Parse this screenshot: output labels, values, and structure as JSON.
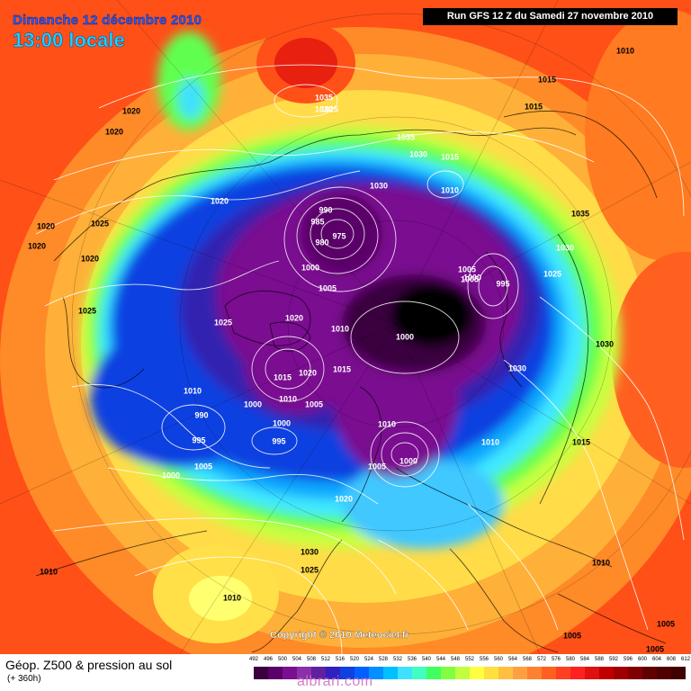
{
  "header": {
    "date_line": "Dimanche 12 décembre 2010",
    "time_line": "13:00 locale",
    "run_info": "Run GFS 12 Z du Samedi 27 novembre 2010"
  },
  "footer": {
    "title": "Géop. Z500 & pression au sol",
    "subtitle": "(+ 360h)",
    "copyright": "Copyright © 2010 Meteociel.fr",
    "watermark": "albrari.com"
  },
  "scale": {
    "labels": [
      "492",
      "496",
      "500",
      "504",
      "508",
      "512",
      "516",
      "520",
      "524",
      "528",
      "532",
      "536",
      "540",
      "544",
      "548",
      "552",
      "556",
      "560",
      "564",
      "568",
      "572",
      "576",
      "580",
      "584",
      "588",
      "592",
      "596",
      "600",
      "604",
      "608",
      "612"
    ],
    "colors": [
      "#3a0040",
      "#5a0068",
      "#7a1090",
      "#8a30a8",
      "#6020a0",
      "#3020c0",
      "#1040e0",
      "#0060ff",
      "#0090ff",
      "#00c0ff",
      "#40e0ff",
      "#40ffc0",
      "#40ff60",
      "#80ff40",
      "#c0ff40",
      "#ffff40",
      "#ffe040",
      "#ffc040",
      "#ffa040",
      "#ff8030",
      "#ff6020",
      "#ff4020",
      "#ff2020",
      "#e01010",
      "#c00000",
      "#a00000",
      "#800000",
      "#600000",
      "#500000",
      "#400000"
    ]
  },
  "pressure_labels": [
    {
      "text": "1010"
    },
    {
      "text": "1015"
    },
    {
      "text": "1020"
    },
    {
      "text": "1035"
    },
    {
      "text": "1030"
    },
    {
      "text": "1025"
    },
    {
      "text": "1015"
    },
    {
      "text": "1020"
    },
    {
      "text": "1035"
    },
    {
      "text": "1030"
    },
    {
      "text": "1015"
    },
    {
      "text": "1030"
    },
    {
      "text": "1010"
    },
    {
      "text": "1020"
    },
    {
      "text": "990"
    },
    {
      "text": "985"
    },
    {
      "text": "980"
    },
    {
      "text": "975"
    },
    {
      "text": "1035"
    },
    {
      "text": "1020"
    },
    {
      "text": "1025"
    },
    {
      "text": "1020"
    },
    {
      "text": "1020"
    },
    {
      "text": "1025"
    },
    {
      "text": "1000"
    },
    {
      "text": "1005"
    },
    {
      "text": "1005"
    },
    {
      "text": "1000"
    },
    {
      "text": "995"
    },
    {
      "text": "1030"
    },
    {
      "text": "1025"
    },
    {
      "text": "1025"
    },
    {
      "text": "1020"
    },
    {
      "text": "1010"
    },
    {
      "text": "1000"
    },
    {
      "text": "1005"
    },
    {
      "text": "1015"
    },
    {
      "text": "1020"
    },
    {
      "text": "1015"
    },
    {
      "text": "1010"
    },
    {
      "text": "1005"
    },
    {
      "text": "1030"
    },
    {
      "text": "1030"
    },
    {
      "text": "1010"
    },
    {
      "text": "1000"
    },
    {
      "text": "990"
    },
    {
      "text": "1000"
    },
    {
      "text": "995"
    },
    {
      "text": "995"
    },
    {
      "text": "1010"
    },
    {
      "text": "1010"
    },
    {
      "text": "1015"
    },
    {
      "text": "1000"
    },
    {
      "text": "1005"
    },
    {
      "text": "1005"
    },
    {
      "text": "1000"
    },
    {
      "text": "1020"
    },
    {
      "text": "1030"
    },
    {
      "text": "1025"
    },
    {
      "text": "1010"
    },
    {
      "text": "1010"
    },
    {
      "text": "1010"
    },
    {
      "text": "1005"
    },
    {
      "text": "1005"
    },
    {
      "text": "1005"
    }
  ]
}
